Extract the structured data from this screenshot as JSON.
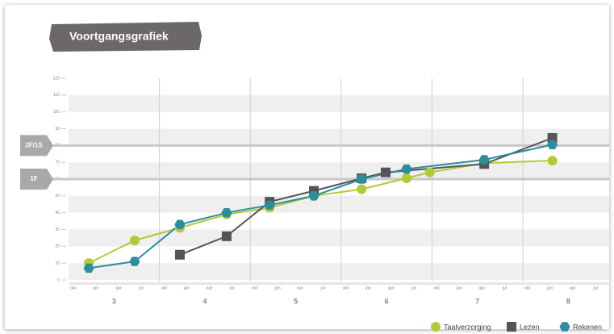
{
  "chart_data": {
    "type": "line",
    "title": "Voortgangsgrafiek",
    "xlim": [
      -0.2,
      23.6
    ],
    "ylim": [
      0,
      120
    ],
    "yticks": [
      0,
      10,
      20,
      30,
      40,
      50,
      60,
      70,
      80,
      90,
      100,
      110,
      120
    ],
    "xticks": [
      {
        "value": 0,
        "label": "okt"
      },
      {
        "value": 1,
        "label": "jan"
      },
      {
        "value": 2,
        "label": "apr"
      },
      {
        "value": 3,
        "label": "jul"
      },
      {
        "value": 4,
        "label": "okt"
      },
      {
        "value": 5,
        "label": "jan"
      },
      {
        "value": 6,
        "label": "apr"
      },
      {
        "value": 7,
        "label": "jul"
      },
      {
        "value": 8,
        "label": "okt"
      },
      {
        "value": 9,
        "label": "jan"
      },
      {
        "value": 10,
        "label": "apr"
      },
      {
        "value": 11,
        "label": "jul"
      },
      {
        "value": 12,
        "label": "okt"
      },
      {
        "value": 13,
        "label": "jan"
      },
      {
        "value": 14,
        "label": "apr"
      },
      {
        "value": 15,
        "label": "jul"
      },
      {
        "value": 16,
        "label": "okt"
      },
      {
        "value": 17,
        "label": "jan"
      },
      {
        "value": 18,
        "label": "apr"
      },
      {
        "value": 19,
        "label": "jul"
      },
      {
        "value": 20,
        "label": "okt"
      },
      {
        "value": 21,
        "label": "jan"
      },
      {
        "value": 22,
        "label": "apr"
      },
      {
        "value": 23,
        "label": "jul"
      }
    ],
    "group_ticks": [
      {
        "value": 1.8,
        "label": "3"
      },
      {
        "value": 5.8,
        "label": "4"
      },
      {
        "value": 9.8,
        "label": "5"
      },
      {
        "value": 13.8,
        "label": "6"
      },
      {
        "value": 17.8,
        "label": "7"
      },
      {
        "value": 21.8,
        "label": "8"
      }
    ],
    "xgrid": [
      3.8,
      7.8,
      11.8,
      15.8,
      19.8
    ],
    "ref_lines": [
      {
        "value": 80,
        "label": "2F/1S"
      },
      {
        "value": 60,
        "label": "1F"
      }
    ],
    "series": [
      {
        "name": "Taalverzorging",
        "color": "#b3c935",
        "marker": "circle",
        "x": [
          0.69,
          2.71,
          4.7,
          6.76,
          8.65,
          10.6,
          12.7,
          14.68,
          15.7,
          18.1,
          21.1
        ],
        "values": [
          10,
          23.5,
          31,
          39,
          43,
          50,
          54,
          60.5,
          64,
          69.5,
          71
        ]
      },
      {
        "name": "Lezen",
        "color": "#555555",
        "marker": "square",
        "x": [
          4.7,
          6.76,
          8.65,
          10.6,
          12.7,
          13.76,
          18.1,
          21.1
        ],
        "values": [
          15,
          26,
          46.5,
          53,
          60.5,
          64,
          69,
          84.5
        ]
      },
      {
        "name": "Rekenen",
        "color": "#2a8e9e",
        "marker": "hexagon",
        "x": [
          0.69,
          2.71,
          4.7,
          6.76,
          8.65,
          10.6,
          12.7,
          14.68,
          18.1,
          21.1
        ],
        "values": [
          7,
          11,
          33,
          40,
          44.5,
          50,
          60,
          66,
          71.5,
          80.5
        ]
      }
    ]
  }
}
